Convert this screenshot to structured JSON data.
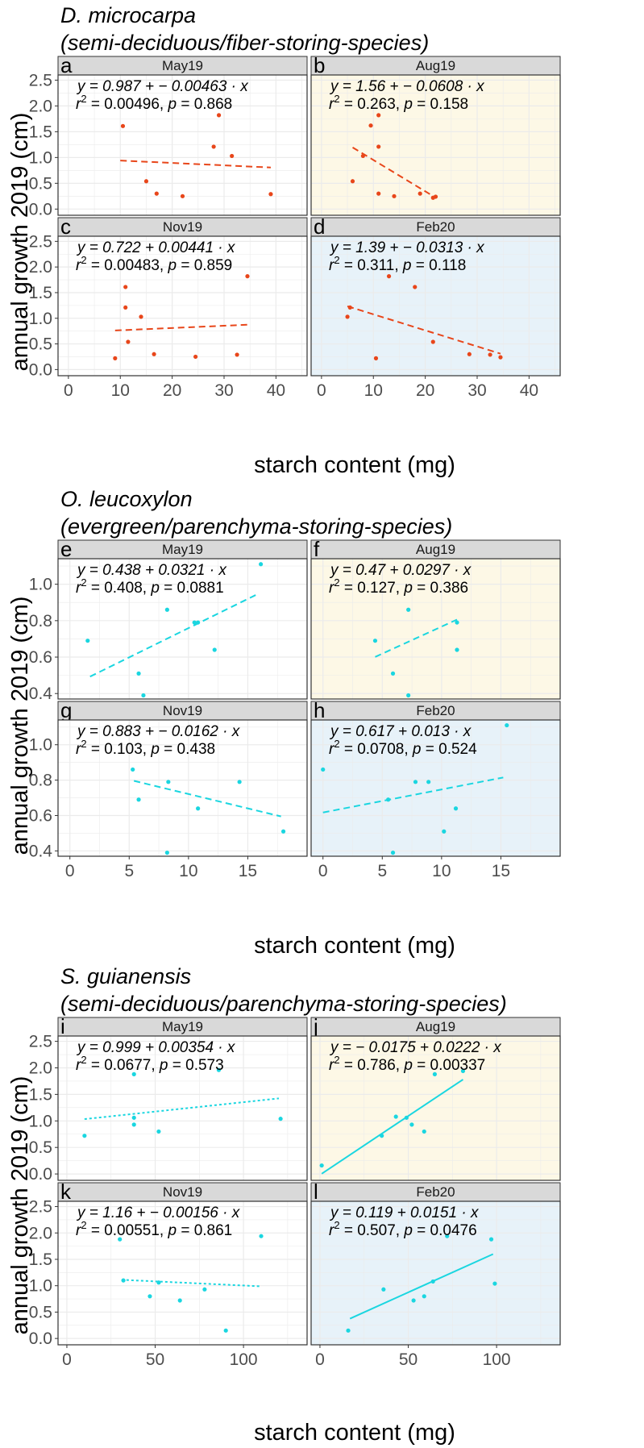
{
  "figure": {
    "y_axis_label": "annual growth 2019 (cm)",
    "x_axis_label": "starch content (mg)"
  },
  "colors": {
    "panel_white": "#ffffff",
    "panel_aug": "#fdf8e6",
    "panel_feb": "#e7f2f9",
    "strip_bg": "#d9d9d9",
    "grid": "#ebebeb",
    "border": "#333333",
    "dmicro_points": "#e8461a",
    "oleuco_points": "#1ad6e0",
    "sguian_points": "#1ad6e0"
  },
  "groups": [
    {
      "id": "dmicro",
      "title": "D. microcarpa",
      "subtitle": "(semi-deciduous/fiber-storing-species)",
      "xlim": [
        -2,
        46
      ],
      "ylim": [
        -0.12,
        2.6
      ],
      "x_ticks": [
        "0",
        "10",
        "20",
        "30",
        "40"
      ],
      "x_tick_values": [
        0,
        10,
        20,
        30,
        40
      ],
      "y_ticks": [
        "0.0",
        "0.5",
        "1.0",
        "1.5",
        "2.0",
        "2.5"
      ],
      "y_tick_values": [
        0,
        0.5,
        1,
        1.5,
        2,
        2.5
      ],
      "point_color": "#e8461a",
      "line_color": "#e8461a"
    },
    {
      "id": "oleuco",
      "title": "O. leucoxylon",
      "subtitle": "(evergreen/parenchyma-storing-species)",
      "xlim": [
        -1,
        20
      ],
      "ylim": [
        0.37,
        1.14
      ],
      "x_ticks": [
        "0",
        "5",
        "10",
        "15"
      ],
      "x_tick_values": [
        0,
        5,
        10,
        15
      ],
      "y_ticks": [
        "0.4",
        "0.6",
        "0.8",
        "1.0"
      ],
      "y_tick_values": [
        0.4,
        0.6,
        0.8,
        1.0
      ],
      "point_color": "#1ad6e0",
      "line_color": "#1ad6e0"
    },
    {
      "id": "sguian",
      "title": "S. guianensis",
      "subtitle": "(semi-deciduous/parenchyma-storing-species)",
      "xlim": [
        -5,
        136
      ],
      "ylim": [
        -0.12,
        2.6
      ],
      "x_ticks": [
        "0",
        "50",
        "100"
      ],
      "x_tick_values": [
        0,
        50,
        100
      ],
      "y_ticks": [
        "0.0",
        "0.5",
        "1.0",
        "1.5",
        "2.0",
        "2.5"
      ],
      "y_tick_values": [
        0,
        0.5,
        1,
        1.5,
        2,
        2.5
      ],
      "point_color": "#1ad6e0",
      "line_color": "#1ad6e0"
    }
  ],
  "chart_data": [
    {
      "type": "scatter",
      "panel": "a",
      "group": "D. microcarpa",
      "season": "May19",
      "bg": "white",
      "equation": "y = 0.987 + − 0.00463 · x",
      "r2": "0.00496",
      "p": "0.868",
      "fit": {
        "x": [
          10,
          39
        ],
        "y": [
          0.941,
          0.806
        ],
        "line": "dashed"
      },
      "points": [
        [
          10.5,
          1.61
        ],
        [
          15,
          0.54
        ],
        [
          17,
          0.3
        ],
        [
          22,
          0.25
        ],
        [
          28,
          1.21
        ],
        [
          29,
          1.82
        ],
        [
          31.5,
          1.03
        ],
        [
          39,
          0.29
        ]
      ]
    },
    {
      "type": "scatter",
      "panel": "b",
      "group": "D. microcarpa",
      "season": "Aug19",
      "bg": "aug",
      "equation": "y = 1.56 + − 0.0608 · x",
      "r2": "0.263",
      "p": "0.158",
      "fit": {
        "x": [
          6,
          22
        ],
        "y": [
          1.195,
          0.222
        ],
        "line": "dashed"
      },
      "points": [
        [
          6,
          0.54
        ],
        [
          8,
          1.03
        ],
        [
          9.5,
          1.62
        ],
        [
          11,
          1.82
        ],
        [
          11,
          1.21
        ],
        [
          11,
          0.3
        ],
        [
          14,
          0.25
        ],
        [
          19,
          0.3
        ],
        [
          21.5,
          0.22
        ],
        [
          22,
          0.24
        ]
      ]
    },
    {
      "type": "scatter",
      "panel": "c",
      "group": "D. microcarpa",
      "season": "Nov19",
      "bg": "white",
      "equation": "y = 0.722 + 0.00441 · x",
      "r2": "0.00483",
      "p": "0.859",
      "fit": {
        "x": [
          9,
          35
        ],
        "y": [
          0.762,
          0.876
        ],
        "line": "dashed"
      },
      "points": [
        [
          9,
          0.22
        ],
        [
          11,
          1.61
        ],
        [
          11,
          1.21
        ],
        [
          11.5,
          0.54
        ],
        [
          14,
          1.03
        ],
        [
          16.5,
          0.3
        ],
        [
          24.5,
          0.25
        ],
        [
          32.5,
          0.29
        ],
        [
          34.5,
          1.82
        ]
      ]
    },
    {
      "type": "scatter",
      "panel": "d",
      "group": "D. microcarpa",
      "season": "Feb20",
      "bg": "feb",
      "equation": "y = 1.39 + − 0.0313 · x",
      "r2": "0.311",
      "p": "0.118",
      "fit": {
        "x": [
          5,
          34.5
        ],
        "y": [
          1.234,
          0.31
        ],
        "line": "dashed"
      },
      "points": [
        [
          5,
          1.03
        ],
        [
          5.5,
          1.21
        ],
        [
          10.5,
          0.22
        ],
        [
          13,
          1.82
        ],
        [
          18,
          1.61
        ],
        [
          21.5,
          0.54
        ],
        [
          28.5,
          0.3
        ],
        [
          32.5,
          0.29
        ],
        [
          34.5,
          0.24
        ]
      ]
    },
    {
      "type": "scatter",
      "panel": "e",
      "group": "O. leucoxylon",
      "season": "May19",
      "bg": "white",
      "equation": "y = 0.438 + 0.0321 · x",
      "r2": "0.408",
      "p": "0.0881",
      "fit": {
        "x": [
          1.7,
          15.8
        ],
        "y": [
          0.493,
          0.945
        ],
        "line": "dashed"
      },
      "points": [
        [
          1.5,
          0.69
        ],
        [
          5.8,
          0.51
        ],
        [
          6.2,
          0.39
        ],
        [
          8.2,
          0.86
        ],
        [
          10.5,
          0.79
        ],
        [
          10.8,
          0.79
        ],
        [
          12.2,
          0.64
        ],
        [
          16.1,
          1.11
        ]
      ]
    },
    {
      "type": "scatter",
      "panel": "f",
      "group": "O. leucoxylon",
      "season": "Aug19",
      "bg": "aug",
      "equation": "y = 0.47 + 0.0297 · x",
      "r2": "0.127",
      "p": "0.386",
      "fit": {
        "x": [
          4.4,
          11.3
        ],
        "y": [
          0.601,
          0.806
        ],
        "line": "dashed"
      },
      "points": [
        [
          4.4,
          0.69
        ],
        [
          5.9,
          0.51
        ],
        [
          7.2,
          0.86
        ],
        [
          7.2,
          0.39
        ],
        [
          11.3,
          0.79
        ],
        [
          11.3,
          0.64
        ]
      ]
    },
    {
      "type": "scatter",
      "panel": "g",
      "group": "O. leucoxylon",
      "season": "Nov19",
      "bg": "white",
      "equation": "y = 0.883 + − 0.0162 · x",
      "r2": "0.103",
      "p": "0.438",
      "fit": {
        "x": [
          5.4,
          17.8
        ],
        "y": [
          0.796,
          0.595
        ],
        "line": "dashed"
      },
      "points": [
        [
          5.3,
          0.86
        ],
        [
          5.8,
          0.69
        ],
        [
          8.2,
          0.39
        ],
        [
          8.3,
          0.79
        ],
        [
          10.8,
          0.64
        ],
        [
          14.3,
          0.79
        ],
        [
          18,
          0.51
        ]
      ]
    },
    {
      "type": "scatter",
      "panel": "h",
      "group": "O. leucoxylon",
      "season": "Feb20",
      "bg": "feb",
      "equation": "y = 0.617 + 0.013 · x",
      "r2": "0.0708",
      "p": "0.524",
      "fit": {
        "x": [
          0,
          15.2
        ],
        "y": [
          0.617,
          0.815
        ],
        "line": "dashed"
      },
      "points": [
        [
          0,
          0.86
        ],
        [
          5.5,
          0.69
        ],
        [
          5.9,
          0.39
        ],
        [
          7.8,
          0.79
        ],
        [
          8.9,
          0.79
        ],
        [
          10.2,
          0.51
        ],
        [
          11.2,
          0.64
        ],
        [
          15.5,
          1.11
        ]
      ]
    },
    {
      "type": "scatter",
      "panel": "i",
      "group": "S. guianensis",
      "season": "May19",
      "bg": "white",
      "equation": "y = 0.999 + 0.00354 · x",
      "r2": "0.0677",
      "p": "0.573",
      "fit": {
        "x": [
          10,
          120
        ],
        "y": [
          1.034,
          1.424
        ],
        "line": "dotted"
      },
      "points": [
        [
          10,
          0.72
        ],
        [
          38,
          1.88
        ],
        [
          38,
          1.06
        ],
        [
          38,
          0.93
        ],
        [
          52,
          0.8
        ],
        [
          86,
          1.96
        ],
        [
          121,
          1.04
        ]
      ]
    },
    {
      "type": "scatter",
      "panel": "j",
      "group": "S. guianensis",
      "season": "Aug19",
      "bg": "aug",
      "equation": "y = − 0.0175 + 0.0222 · x",
      "r2": "0.786",
      "p": "0.00337",
      "fit": {
        "x": [
          1,
          81
        ],
        "y": [
          0.005,
          1.781
        ],
        "line": "solid"
      },
      "points": [
        [
          1,
          0.16
        ],
        [
          35,
          0.72
        ],
        [
          43,
          1.08
        ],
        [
          49,
          1.06
        ],
        [
          52,
          0.93
        ],
        [
          59,
          0.8
        ],
        [
          65,
          1.88
        ],
        [
          81,
          1.94
        ]
      ]
    },
    {
      "type": "scatter",
      "panel": "k",
      "group": "S. guianensis",
      "season": "Nov19",
      "bg": "white",
      "equation": "y = 1.16 + − 0.00156 · x",
      "r2": "0.00551",
      "p": "0.861",
      "fit": {
        "x": [
          31,
          110
        ],
        "y": [
          1.112,
          0.988
        ],
        "line": "dotted"
      },
      "points": [
        [
          30,
          1.88
        ],
        [
          32,
          1.1
        ],
        [
          47,
          0.8
        ],
        [
          52,
          1.06
        ],
        [
          64,
          0.72
        ],
        [
          78,
          0.93
        ],
        [
          90,
          0.15
        ],
        [
          110,
          1.94
        ]
      ]
    },
    {
      "type": "scatter",
      "panel": "l",
      "group": "S. guianensis",
      "season": "Feb20",
      "bg": "feb",
      "equation": "y = 0.119 + 0.0151 · x",
      "r2": "0.507",
      "p": "0.0476",
      "fit": {
        "x": [
          17,
          98
        ],
        "y": [
          0.376,
          1.599
        ],
        "line": "solid"
      },
      "points": [
        [
          16,
          0.15
        ],
        [
          36,
          0.93
        ],
        [
          53,
          0.72
        ],
        [
          59,
          0.8
        ],
        [
          64,
          1.08
        ],
        [
          72,
          1.94
        ],
        [
          97,
          1.88
        ],
        [
          99,
          1.04
        ]
      ]
    }
  ]
}
